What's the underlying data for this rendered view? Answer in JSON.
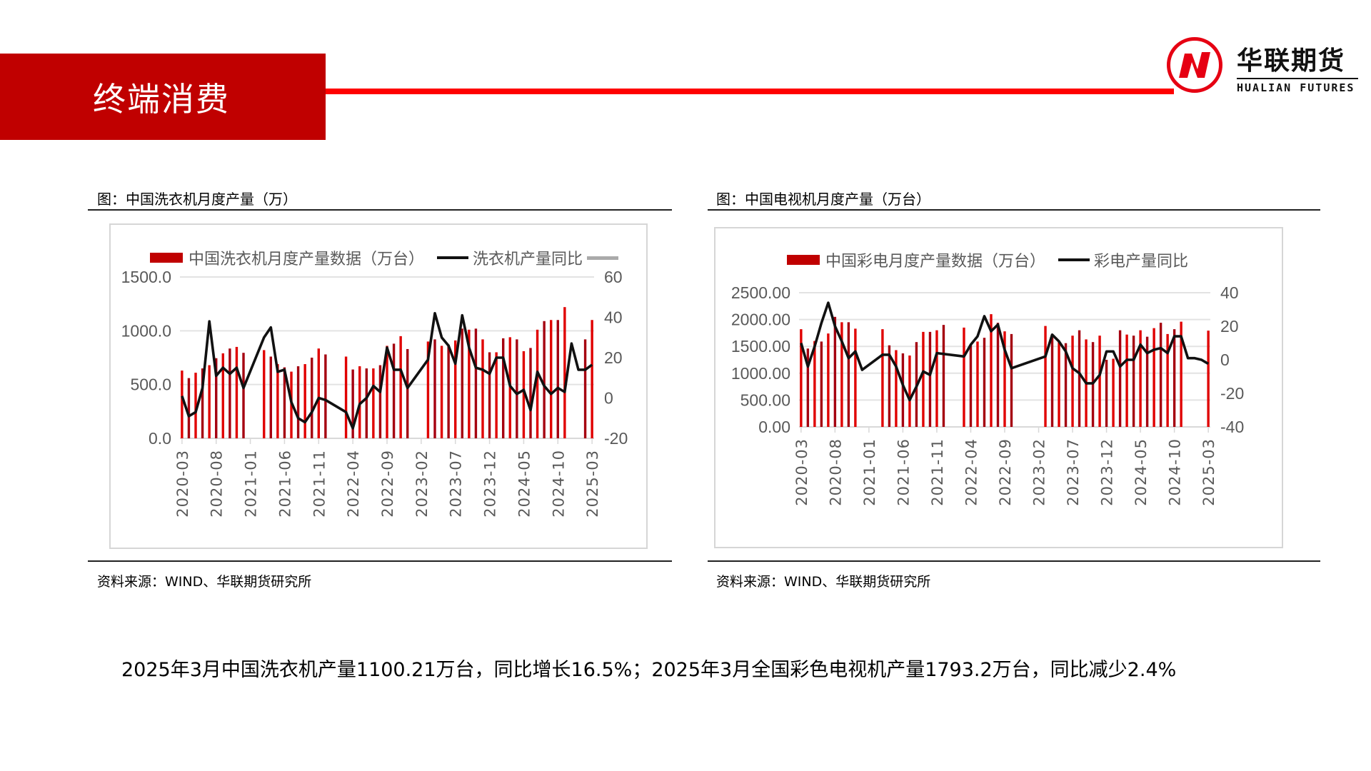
{
  "header": {
    "section_title": "终端消费",
    "logo_cn": "华联期货",
    "logo_en": "HUALIAN FUTURES",
    "accent_color": "#c00000",
    "rule_color": "#ff0000"
  },
  "left_panel": {
    "caption": "图：中国洗衣机月度产量（万）",
    "legend_bar": "中国洗衣机月度产量数据（万台）",
    "legend_line": "洗衣机产量同比",
    "source": "资料来源：WIND、华联期货研究所"
  },
  "right_panel": {
    "caption": "图：中国电视机月度产量（万台）",
    "legend_bar": "中国彩电月度产量数据（万台）",
    "legend_line": "彩电产量同比",
    "source": "资料来源：WIND、华联期货研究所"
  },
  "summary": {
    "text": "2025年3月中国洗衣机产量1100.21万台，同比增长16.5%；2025年3月全国彩色电视机产量1793.2万台，同比减少2.4%"
  },
  "chart_data": [
    {
      "type": "bar+line",
      "title": "中国洗衣机月度产量（万）",
      "x_tick_labels": [
        "2020-03",
        "2020-08",
        "2021-01",
        "2021-06",
        "2021-11",
        "2022-04",
        "2022-09",
        "2023-02",
        "2023-07",
        "2023-12",
        "2024-05",
        "2024-10",
        "2025-03"
      ],
      "x_start": "2020-03",
      "x_end": "2025-03",
      "left_ylim": [
        0,
        1500
      ],
      "left_yticks": [
        "0.0",
        "500.0",
        "1000.0",
        "1500.0"
      ],
      "right_ylim": [
        -20,
        60
      ],
      "right_yticks": [
        "-20",
        "0",
        "20",
        "40",
        "60"
      ],
      "grid": true,
      "legend_position": "top",
      "series": [
        {
          "name": "中国洗衣机月度产量数据（万台）",
          "kind": "bar",
          "color": "#c00000",
          "axis": "left",
          "values": [
            630,
            560,
            610,
            650,
            680,
            745,
            790,
            835,
            850,
            795,
            null,
            null,
            820,
            760,
            690,
            660,
            620,
            670,
            690,
            750,
            835,
            780,
            null,
            null,
            760,
            640,
            670,
            650,
            650,
            680,
            860,
            880,
            950,
            830,
            null,
            null,
            900,
            920,
            860,
            870,
            910,
            1020,
            1010,
            1020,
            920,
            800,
            800,
            930,
            940,
            920,
            810,
            840,
            1010,
            1090,
            1100,
            1100,
            1220,
            null,
            null,
            920,
            1100.21
          ]
        },
        {
          "name": "洗衣机产量同比",
          "kind": "line",
          "color": "#111111",
          "axis": "right",
          "values": [
            1,
            -9,
            -7,
            5,
            38,
            11,
            15,
            12,
            15,
            5,
            null,
            null,
            30,
            35,
            13,
            14,
            -2,
            -10,
            -12,
            -7,
            0,
            -1,
            null,
            null,
            -7,
            -15,
            -3,
            0,
            6,
            3,
            25,
            14,
            14,
            5,
            null,
            null,
            19,
            42,
            30,
            26,
            17,
            41,
            25,
            15,
            14,
            12,
            20,
            20,
            6,
            2,
            4,
            -6,
            13,
            6,
            2,
            5,
            3,
            27,
            14,
            14,
            16.5
          ]
        }
      ]
    },
    {
      "type": "bar+line",
      "title": "中国电视机月度产量（万台）",
      "x_tick_labels": [
        "2020-03",
        "2020-08",
        "2021-01",
        "2021-06",
        "2021-11",
        "2022-04",
        "2022-09",
        "2023-02",
        "2023-07",
        "2023-12",
        "2024-05",
        "2024-10",
        "2025-03"
      ],
      "x_start": "2020-03",
      "x_end": "2025-03",
      "left_ylim": [
        0,
        2500
      ],
      "left_yticks": [
        "0.00",
        "500.00",
        "1000.00",
        "1500.00",
        "2000.00",
        "2500.00"
      ],
      "right_ylim": [
        -40,
        40
      ],
      "right_yticks": [
        "-40",
        "-20",
        "0",
        "20",
        "40"
      ],
      "grid": true,
      "legend_position": "top",
      "series": [
        {
          "name": "中国彩电月度产量数据（万台）",
          "kind": "bar",
          "color": "#c00000",
          "axis": "left",
          "values": [
            1820,
            1460,
            1600,
            1590,
            1740,
            2050,
            1950,
            1950,
            1830,
            null,
            null,
            null,
            1820,
            1520,
            1430,
            1370,
            1330,
            1580,
            1770,
            1770,
            1800,
            1900,
            null,
            null,
            1850,
            1520,
            1590,
            1660,
            2100,
            1940,
            1780,
            1730,
            null,
            null,
            null,
            null,
            1880,
            1700,
            1600,
            1560,
            1700,
            1800,
            1630,
            1580,
            1700,
            1250,
            1270,
            1800,
            1720,
            1700,
            1800,
            1680,
            1840,
            1940,
            1730,
            1820,
            1960,
            null,
            null,
            null,
            1793.2
          ]
        },
        {
          "name": "彩电产量同比",
          "kind": "line",
          "color": "#111111",
          "axis": "right",
          "values": [
            10,
            -4,
            8,
            22,
            34,
            20,
            11,
            1,
            5,
            -6,
            null,
            null,
            3,
            3,
            -4,
            -15,
            -24,
            -16,
            -7,
            -9,
            4,
            null,
            null,
            null,
            2,
            9,
            14,
            26,
            17,
            21,
            6,
            -5,
            null,
            null,
            null,
            null,
            2,
            15,
            11,
            5,
            -5,
            -8,
            -14,
            -14,
            -9,
            5,
            5,
            -4,
            0,
            0,
            9,
            4,
            6,
            7,
            4,
            14,
            14,
            1,
            1,
            0,
            -2.4
          ]
        }
      ]
    }
  ]
}
